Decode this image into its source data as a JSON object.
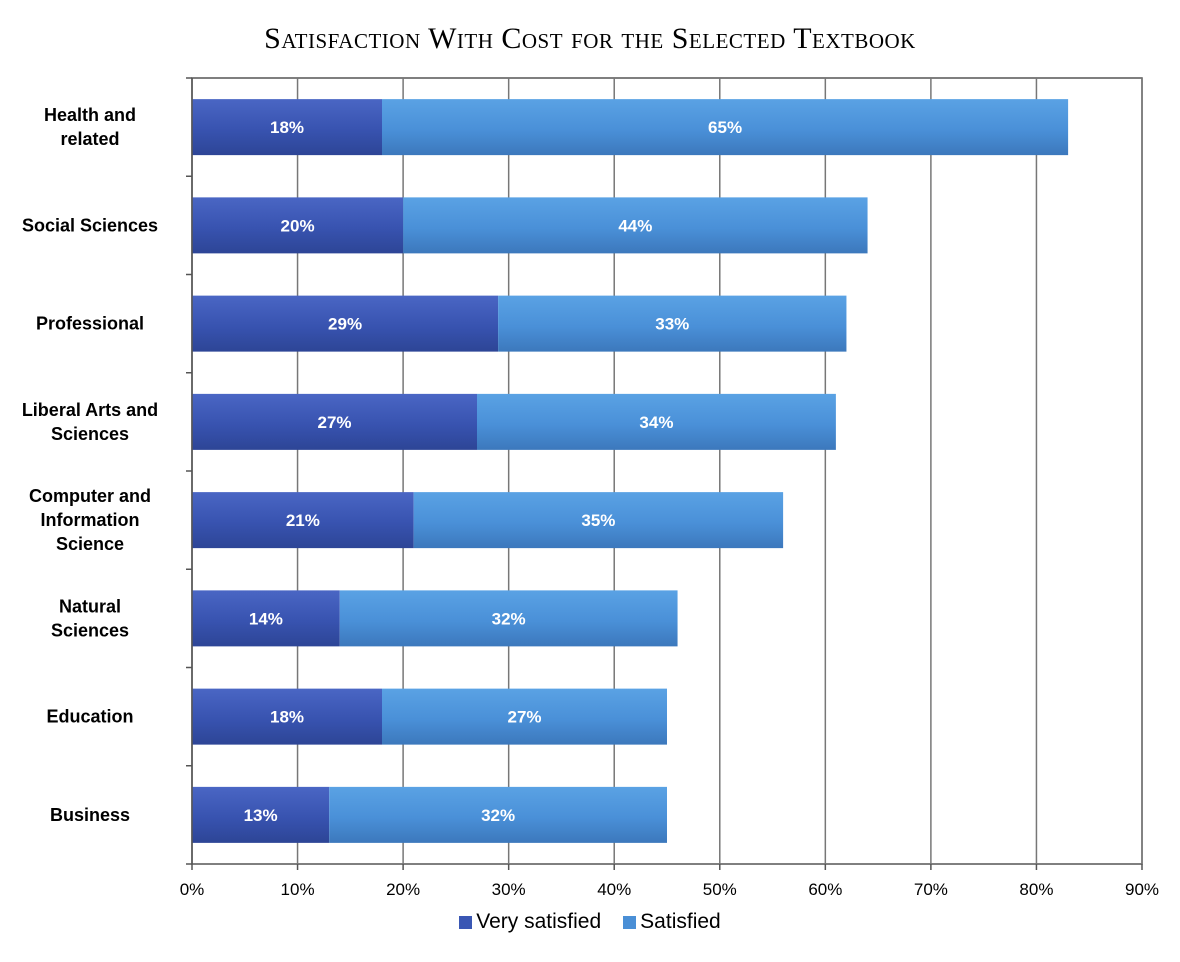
{
  "chart_data": {
    "type": "bar",
    "orientation": "horizontal",
    "stacked": true,
    "title": "Satisfaction With Cost for the Selected Textbook",
    "categories": [
      "Health and related",
      "Social Sciences",
      "Professional",
      "Liberal Arts and Sciences",
      "Computer and Information Science",
      "Natural Sciences",
      "Education",
      "Business"
    ],
    "series": [
      {
        "name": "Very satisfied",
        "color": "#3a57b4",
        "values": [
          18,
          20,
          29,
          27,
          21,
          14,
          18,
          13
        ],
        "labels": [
          "18%",
          "20%",
          "29%",
          "27%",
          "21%",
          "14%",
          "18%",
          "13%"
        ]
      },
      {
        "name": "Satisfied",
        "color": "#4a8fd6",
        "values": [
          65,
          44,
          33,
          34,
          35,
          32,
          27,
          32
        ],
        "labels": [
          "65%",
          "44%",
          "33%",
          "34%",
          "35%",
          "32%",
          "27%",
          "32%"
        ]
      }
    ],
    "xlim": [
      0,
      90
    ],
    "xticks": [
      0,
      10,
      20,
      30,
      40,
      50,
      60,
      70,
      80,
      90
    ],
    "xtick_labels": [
      "0%",
      "10%",
      "20%",
      "30%",
      "40%",
      "50%",
      "60%",
      "70%",
      "80%",
      "90%"
    ],
    "grid": true,
    "legend_position": "bottom"
  }
}
